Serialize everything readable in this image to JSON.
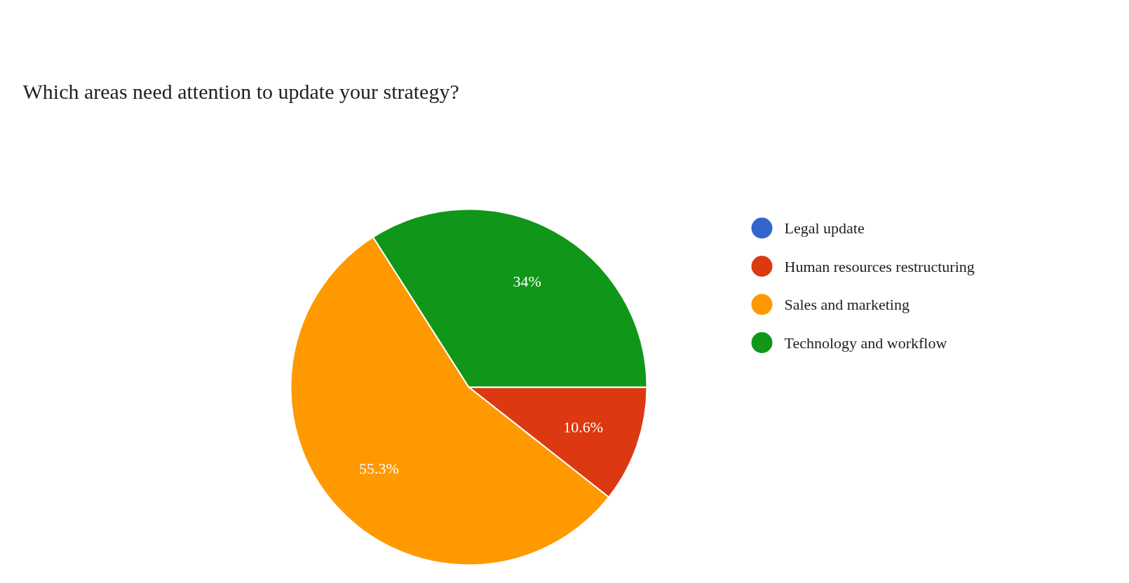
{
  "chart_data": {
    "type": "pie",
    "title": "Which areas need attention to update your strategy?",
    "categories": [
      "Legal update",
      "Human resources restructuring",
      "Sales and marketing",
      "Technology and workflow"
    ],
    "values": [
      0,
      10.6,
      55.3,
      34
    ],
    "colors": [
      "#3366cc",
      "#dc3912",
      "#ff9900",
      "#109618"
    ],
    "value_labels": [
      null,
      "10.6%",
      "55.3%",
      "34%"
    ],
    "legend": "right"
  }
}
